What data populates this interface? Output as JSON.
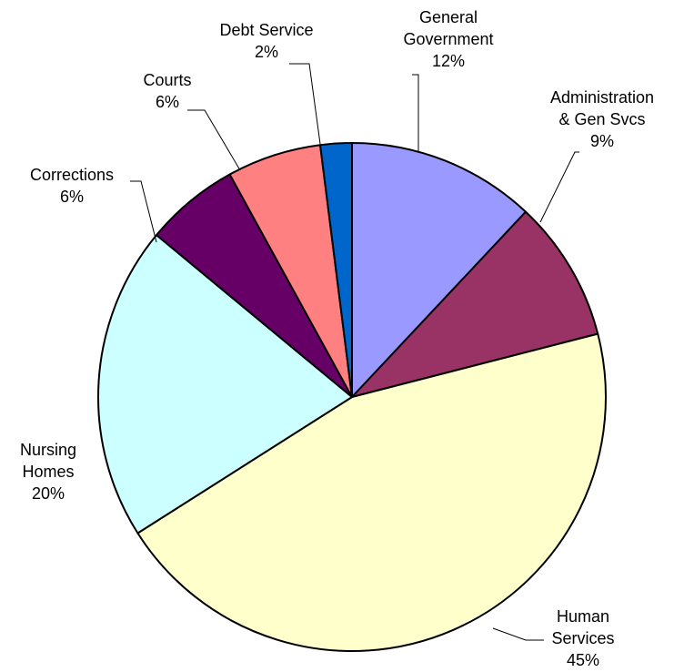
{
  "chart_data": {
    "type": "pie",
    "title": "",
    "start_angle_deg": 0,
    "direction": "clockwise",
    "slices": [
      {
        "id": "general-government",
        "label_lines": [
          "General",
          "Government"
        ],
        "value_label": "12%",
        "value": 12,
        "color": "#9999ff"
      },
      {
        "id": "administration-gen-svcs",
        "label_lines": [
          "Administration",
          "& Gen Svcs"
        ],
        "value_label": "9%",
        "value": 9,
        "color": "#993366"
      },
      {
        "id": "human-services",
        "label_lines": [
          "Human",
          "Services"
        ],
        "value_label": "45%",
        "value": 45,
        "color": "#ffffcc"
      },
      {
        "id": "nursing-homes",
        "label_lines": [
          "Nursing",
          "Homes"
        ],
        "value_label": "20%",
        "value": 20,
        "color": "#ccffff"
      },
      {
        "id": "corrections",
        "label_lines": [
          "Corrections"
        ],
        "value_label": "6%",
        "value": 6,
        "color": "#660066"
      },
      {
        "id": "courts",
        "label_lines": [
          "Courts"
        ],
        "value_label": "6%",
        "value": 6,
        "color": "#ff8080"
      },
      {
        "id": "debt-service",
        "label_lines": [
          "Debt Service"
        ],
        "value_label": "2%",
        "value": 2,
        "color": "#0066cc"
      }
    ]
  }
}
